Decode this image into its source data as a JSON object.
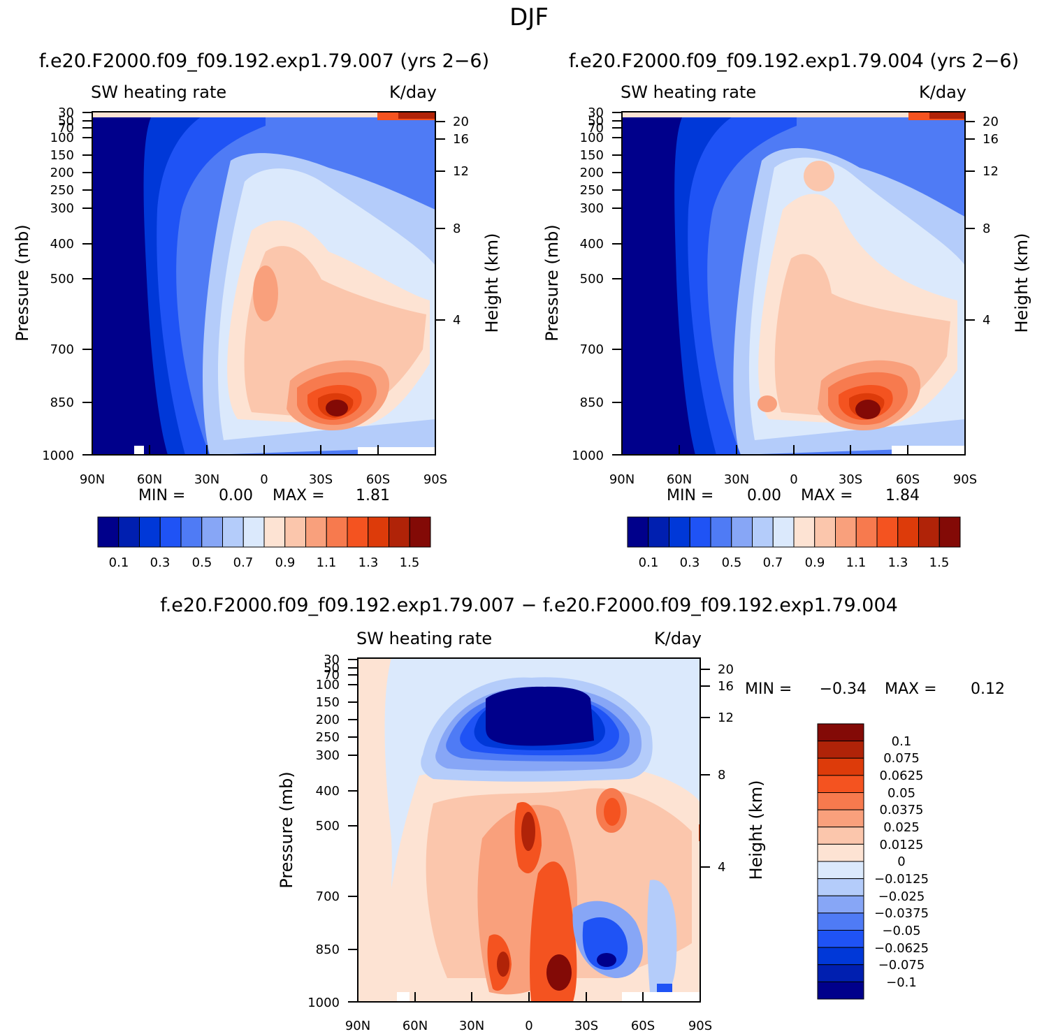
{
  "title": "DJF",
  "chart_data": [
    {
      "type": "heatmap",
      "panel_title": "f.e20.F2000.f09_f09.192.exp1.79.007 (yrs 2−6)",
      "left_label": "SW heating rate",
      "right_label": "K/day",
      "ylabel": "Pressure (mb)",
      "ylabel_right": "Height (km)",
      "x_ticks": [
        "90N",
        "60N",
        "30N",
        "0",
        "30S",
        "60S",
        "90S"
      ],
      "y_ticks": [
        "30",
        "50",
        "70",
        "100",
        "150",
        "200",
        "250",
        "300",
        "400",
        "500",
        "700",
        "850",
        "1000"
      ],
      "height_ticks": [
        "20",
        "16",
        "12",
        "8",
        "4"
      ],
      "min_label": "MIN =",
      "min_value": "0.00",
      "max_label": "MAX =",
      "max_value": "1.81",
      "colorbar_labels": [
        "0.1",
        "0.3",
        "0.5",
        "0.7",
        "0.9",
        "1.1",
        "1.3",
        "1.5"
      ],
      "colors": [
        "#00008b",
        "#001fb0",
        "#0038d8",
        "#1f53f5",
        "#4f7bf5",
        "#87a6f6",
        "#b4ccfa",
        "#dbe9fc",
        "#fde3d3",
        "#fbc6ac",
        "#f9a07c",
        "#f77a4e",
        "#f45320",
        "#dd3b0a",
        "#b02308",
        "#830a06"
      ]
    },
    {
      "type": "heatmap",
      "panel_title": "f.e20.F2000.f09_f09.192.exp1.79.004 (yrs 2−6)",
      "left_label": "SW heating rate",
      "right_label": "K/day",
      "ylabel": "Pressure (mb)",
      "ylabel_right": "Height (km)",
      "x_ticks": [
        "90N",
        "60N",
        "30N",
        "0",
        "30S",
        "60S",
        "90S"
      ],
      "y_ticks": [
        "30",
        "50",
        "70",
        "100",
        "150",
        "200",
        "250",
        "300",
        "400",
        "500",
        "700",
        "850",
        "1000"
      ],
      "height_ticks": [
        "20",
        "16",
        "12",
        "8",
        "4"
      ],
      "min_label": "MIN =",
      "min_value": "0.00",
      "max_label": "MAX =",
      "max_value": "1.84",
      "colorbar_labels": [
        "0.1",
        "0.3",
        "0.5",
        "0.7",
        "0.9",
        "1.1",
        "1.3",
        "1.5"
      ]
    },
    {
      "type": "heatmap",
      "panel_title": "f.e20.F2000.f09_f09.192.exp1.79.007 − f.e20.F2000.f09_f09.192.exp1.79.004",
      "left_label": "SW heating rate",
      "right_label": "K/day",
      "ylabel": "Pressure (mb)",
      "ylabel_right": "Height (km)",
      "x_ticks": [
        "90N",
        "60N",
        "30N",
        "0",
        "30S",
        "60S",
        "90S"
      ],
      "y_ticks": [
        "30",
        "50",
        "70",
        "100",
        "150",
        "200",
        "250",
        "300",
        "400",
        "500",
        "700",
        "850",
        "1000"
      ],
      "height_ticks": [
        "20",
        "16",
        "12",
        "8",
        "4"
      ],
      "min_label": "MIN =",
      "min_value": "−0.34",
      "max_label": "MAX =",
      "max_value": "0.12",
      "colorbar_labels": [
        "0.1",
        "0.075",
        "0.0625",
        "0.05",
        "0.0375",
        "0.025",
        "0.0125",
        "0",
        "−0.0125",
        "−0.025",
        "−0.0375",
        "−0.05",
        "−0.0625",
        "−0.075",
        "−0.1"
      ]
    }
  ]
}
